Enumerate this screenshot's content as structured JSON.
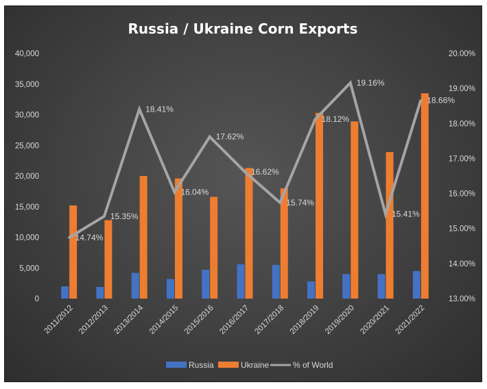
{
  "chart_data": {
    "type": "bar",
    "title": "Russia / Ukraine Corn Exports",
    "categories": [
      "2011/2012",
      "2012/2013",
      "2013/2014",
      "2014/2015",
      "2015/2016",
      "2016/2017",
      "2017/2018",
      "2018/2019",
      "2019/2020",
      "2020/2021",
      "2021/2022"
    ],
    "series": [
      {
        "name": "Russia",
        "type": "bar",
        "axis": "left",
        "color": "#4472c4",
        "values": [
          2000,
          1900,
          4200,
          3200,
          4700,
          5600,
          5500,
          2800,
          4000,
          4000,
          4500
        ]
      },
      {
        "name": "Ukraine",
        "type": "bar",
        "axis": "left",
        "color": "#ed7d31",
        "values": [
          15200,
          12800,
          20000,
          19600,
          16600,
          21300,
          18000,
          30300,
          28900,
          23900,
          33500
        ]
      },
      {
        "name": "% of World",
        "type": "line",
        "axis": "right",
        "color": "#a5a5a5",
        "values": [
          14.74,
          15.35,
          18.41,
          16.04,
          17.62,
          16.62,
          15.74,
          18.12,
          19.16,
          15.41,
          18.66
        ],
        "labels": [
          "14.74%",
          "15.35%",
          "18.41%",
          "16.04%",
          "17.62%",
          "16.62%",
          "15.74%",
          "18.12%",
          "19.16%",
          "15.41%",
          "18.66%"
        ]
      }
    ],
    "y_left": {
      "min": 0,
      "max": 40000,
      "step": 5000,
      "tick_labels": [
        "0",
        "5,000",
        "10,000",
        "15,000",
        "20,000",
        "25,000",
        "30,000",
        "35,000",
        "40,000"
      ]
    },
    "y_right": {
      "min": 13,
      "max": 20,
      "step": 1,
      "tick_labels": [
        "13.00%",
        "14.00%",
        "15.00%",
        "16.00%",
        "17.00%",
        "18.00%",
        "19.00%",
        "20.00%"
      ]
    },
    "grid": false,
    "legend_position": "bottom"
  }
}
